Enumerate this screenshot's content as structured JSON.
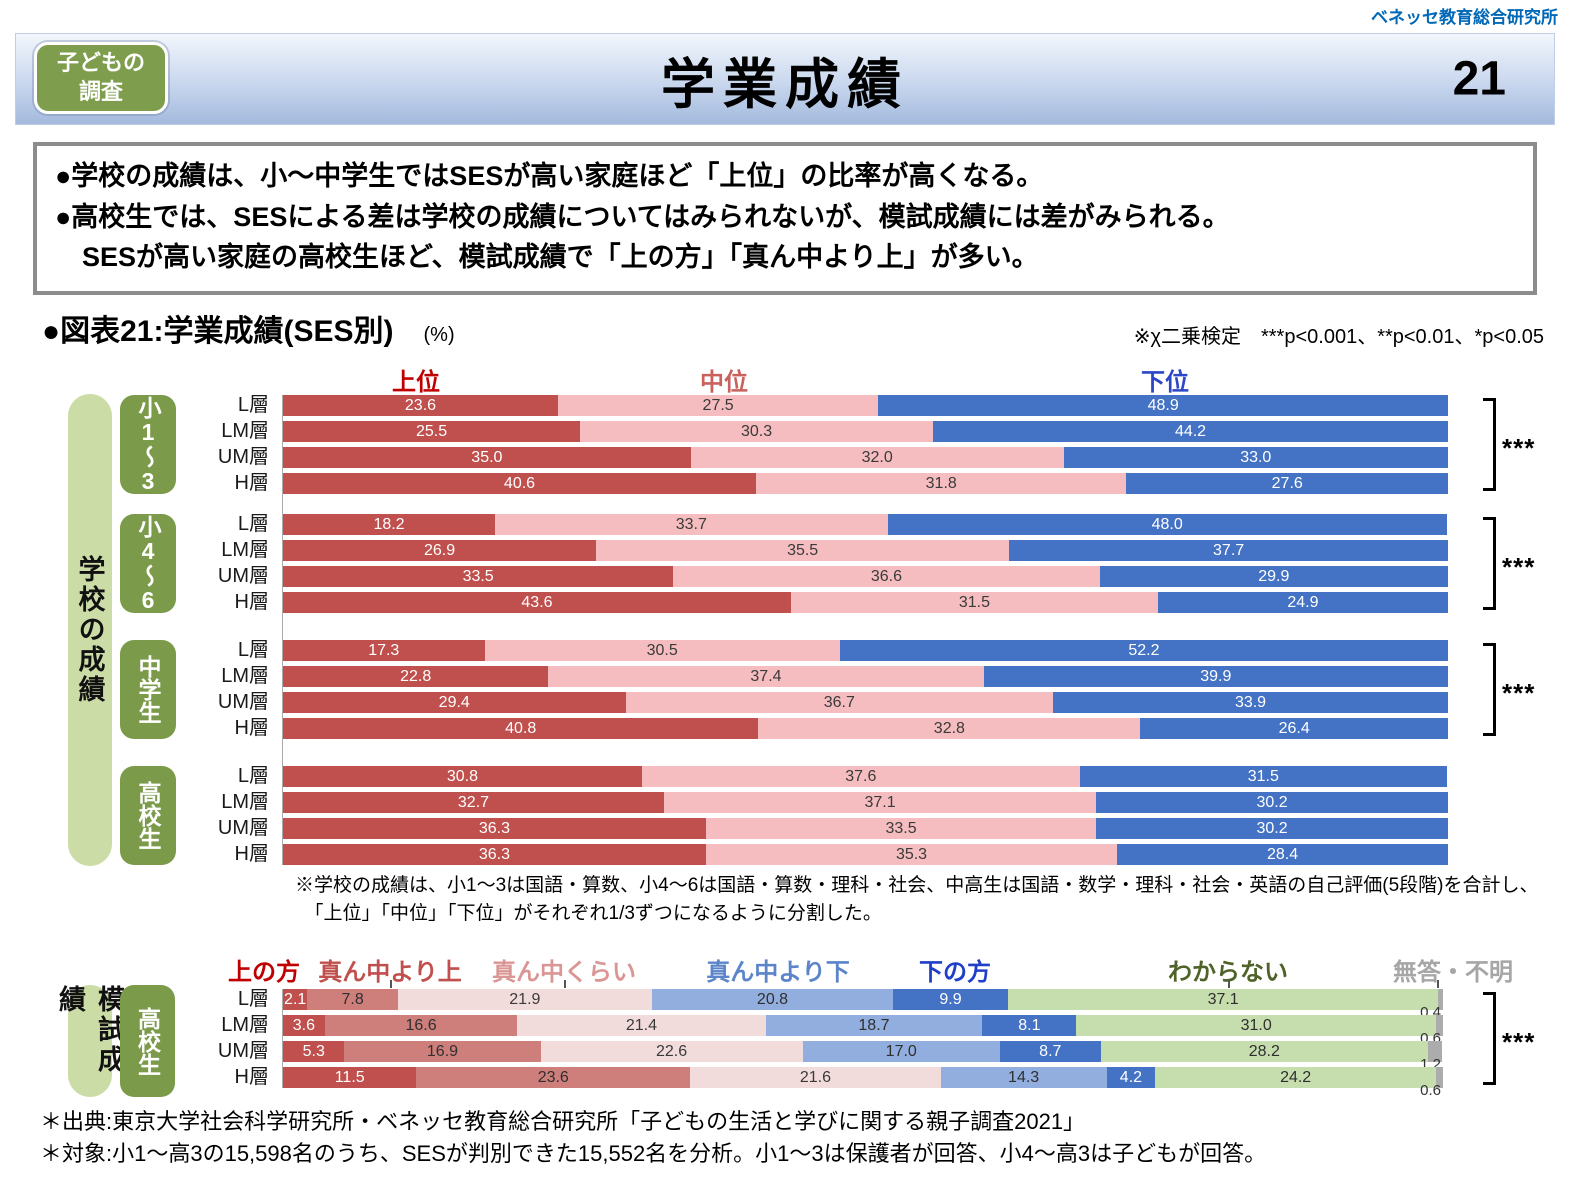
{
  "brand": "ベネッセ教育総合研究所",
  "header": {
    "badge": [
      "子どもの",
      "調査"
    ],
    "title": "学業成績",
    "page_number": "21"
  },
  "summary": {
    "lines": [
      "●学校の成績は、小〜中学生ではSESが高い家庭ほど「上位」の比率が高くなる。",
      "●高校生では、SESによる差は学校の成績についてはみられないが、模試成績には差がみられる。",
      "　SESが高い家庭の高校生ほど、模試成績で「上の方」「真ん中より上」が多い。"
    ]
  },
  "figure": {
    "title": "●図表21:学業成績(SES別)",
    "unit": "(%)",
    "note": "※χ二乗検定　***p<0.001、**p<0.01、*p<0.05"
  },
  "chart_data": [
    {
      "id": "school",
      "type": "bar",
      "stacked": true,
      "orientation": "horizontal",
      "unit": "%",
      "axis_label": "学校の成績",
      "legend": [
        "上位",
        "中位",
        "下位"
      ],
      "legend_text_colors": [
        "#C00000",
        "#C9615C",
        "#2B46C8"
      ],
      "colors": [
        "#C0504D",
        "#F5BDBF",
        "#4472C4"
      ],
      "value_text_colors": [
        "#FFFFFF",
        "#3A3A3A",
        "#FFFFFF"
      ],
      "groups": [
        {
          "label": "小1〜3",
          "significance": "***",
          "rows": [
            {
              "label": "L層",
              "values": [
                23.6,
                27.5,
                48.9
              ]
            },
            {
              "label": "LM層",
              "values": [
                25.5,
                30.3,
                44.2
              ]
            },
            {
              "label": "UM層",
              "values": [
                35.0,
                32.0,
                33.0
              ]
            },
            {
              "label": "H層",
              "values": [
                40.6,
                31.8,
                27.6
              ]
            }
          ]
        },
        {
          "label": "小4〜6",
          "significance": "***",
          "rows": [
            {
              "label": "L層",
              "values": [
                18.2,
                33.7,
                48.0
              ]
            },
            {
              "label": "LM層",
              "values": [
                26.9,
                35.5,
                37.7
              ]
            },
            {
              "label": "UM層",
              "values": [
                33.5,
                36.6,
                29.9
              ]
            },
            {
              "label": "H層",
              "values": [
                43.6,
                31.5,
                24.9
              ]
            }
          ]
        },
        {
          "label": "中学生",
          "significance": "***",
          "rows": [
            {
              "label": "L層",
              "values": [
                17.3,
                30.5,
                52.2
              ]
            },
            {
              "label": "LM層",
              "values": [
                22.8,
                37.4,
                39.9
              ]
            },
            {
              "label": "UM層",
              "values": [
                29.4,
                36.7,
                33.9
              ]
            },
            {
              "label": "H層",
              "values": [
                40.8,
                32.8,
                26.4
              ]
            }
          ]
        },
        {
          "label": "高校生",
          "significance": null,
          "rows": [
            {
              "label": "L層",
              "values": [
                30.8,
                37.6,
                31.5
              ]
            },
            {
              "label": "LM層",
              "values": [
                32.7,
                37.1,
                30.2
              ]
            },
            {
              "label": "UM層",
              "values": [
                36.3,
                33.5,
                30.2
              ]
            },
            {
              "label": "H層",
              "values": [
                36.3,
                35.3,
                28.4
              ]
            }
          ]
        }
      ]
    },
    {
      "id": "mock",
      "type": "bar",
      "stacked": true,
      "orientation": "horizontal",
      "unit": "%",
      "axis_label": "模試成績",
      "legend": [
        "上の方",
        "真ん中より上",
        "真ん中くらい",
        "真ん中より下",
        "下の方",
        "わからない",
        "無答・不明"
      ],
      "legend_text_colors": [
        "#C00000",
        "#C0504D",
        "#D99694",
        "#5B84C9",
        "#1F3FC8",
        "#4F6228",
        "#A6A6A6"
      ],
      "colors": [
        "#C0504D",
        "#CE7E7B",
        "#F2DCDB",
        "#92AEDE",
        "#4472C4",
        "#C6DDAE",
        "#ACACAC"
      ],
      "value_text_colors": [
        "#FFFFFF",
        "#2F2F2F",
        "#3A3A3A",
        "#2F2F2F",
        "#FFFFFF",
        "#2F2F2F",
        "#2F2F2F"
      ],
      "last_value_outside": true,
      "groups": [
        {
          "label": "高校生",
          "significance": "***",
          "rows": [
            {
              "label": "L層",
              "values": [
                2.1,
                7.8,
                21.9,
                20.8,
                9.9,
                37.1,
                0.4
              ]
            },
            {
              "label": "LM層",
              "values": [
                3.6,
                16.6,
                21.4,
                18.7,
                8.1,
                31.0,
                0.6
              ]
            },
            {
              "label": "UM層",
              "values": [
                5.3,
                16.9,
                22.6,
                17.0,
                8.7,
                28.2,
                1.2
              ]
            },
            {
              "label": "H層",
              "values": [
                11.5,
                23.6,
                21.6,
                14.3,
                4.2,
                24.2,
                0.6
              ]
            }
          ]
        }
      ]
    }
  ],
  "school_footnote": [
    "※学校の成績は、小1〜3は国語・算数、小4〜6は国語・算数・理科・社会、中高生は国語・数学・理科・社会・英語の自己評価(5段階)を合計し、",
    "　「上位」「中位」「下位」がそれぞれ1/3ずつになるように分割した。"
  ],
  "footer": [
    "＊出典:東京大学社会科学研究所・ベネッセ教育総合研究所「子どもの生活と学びに関する親子調査2021」",
    "＊対象:小1〜高3の15,598名のうち、SESが判別できた15,552名を分析。小1〜3は保護者が回答、小4〜高3は子どもが回答。"
  ]
}
